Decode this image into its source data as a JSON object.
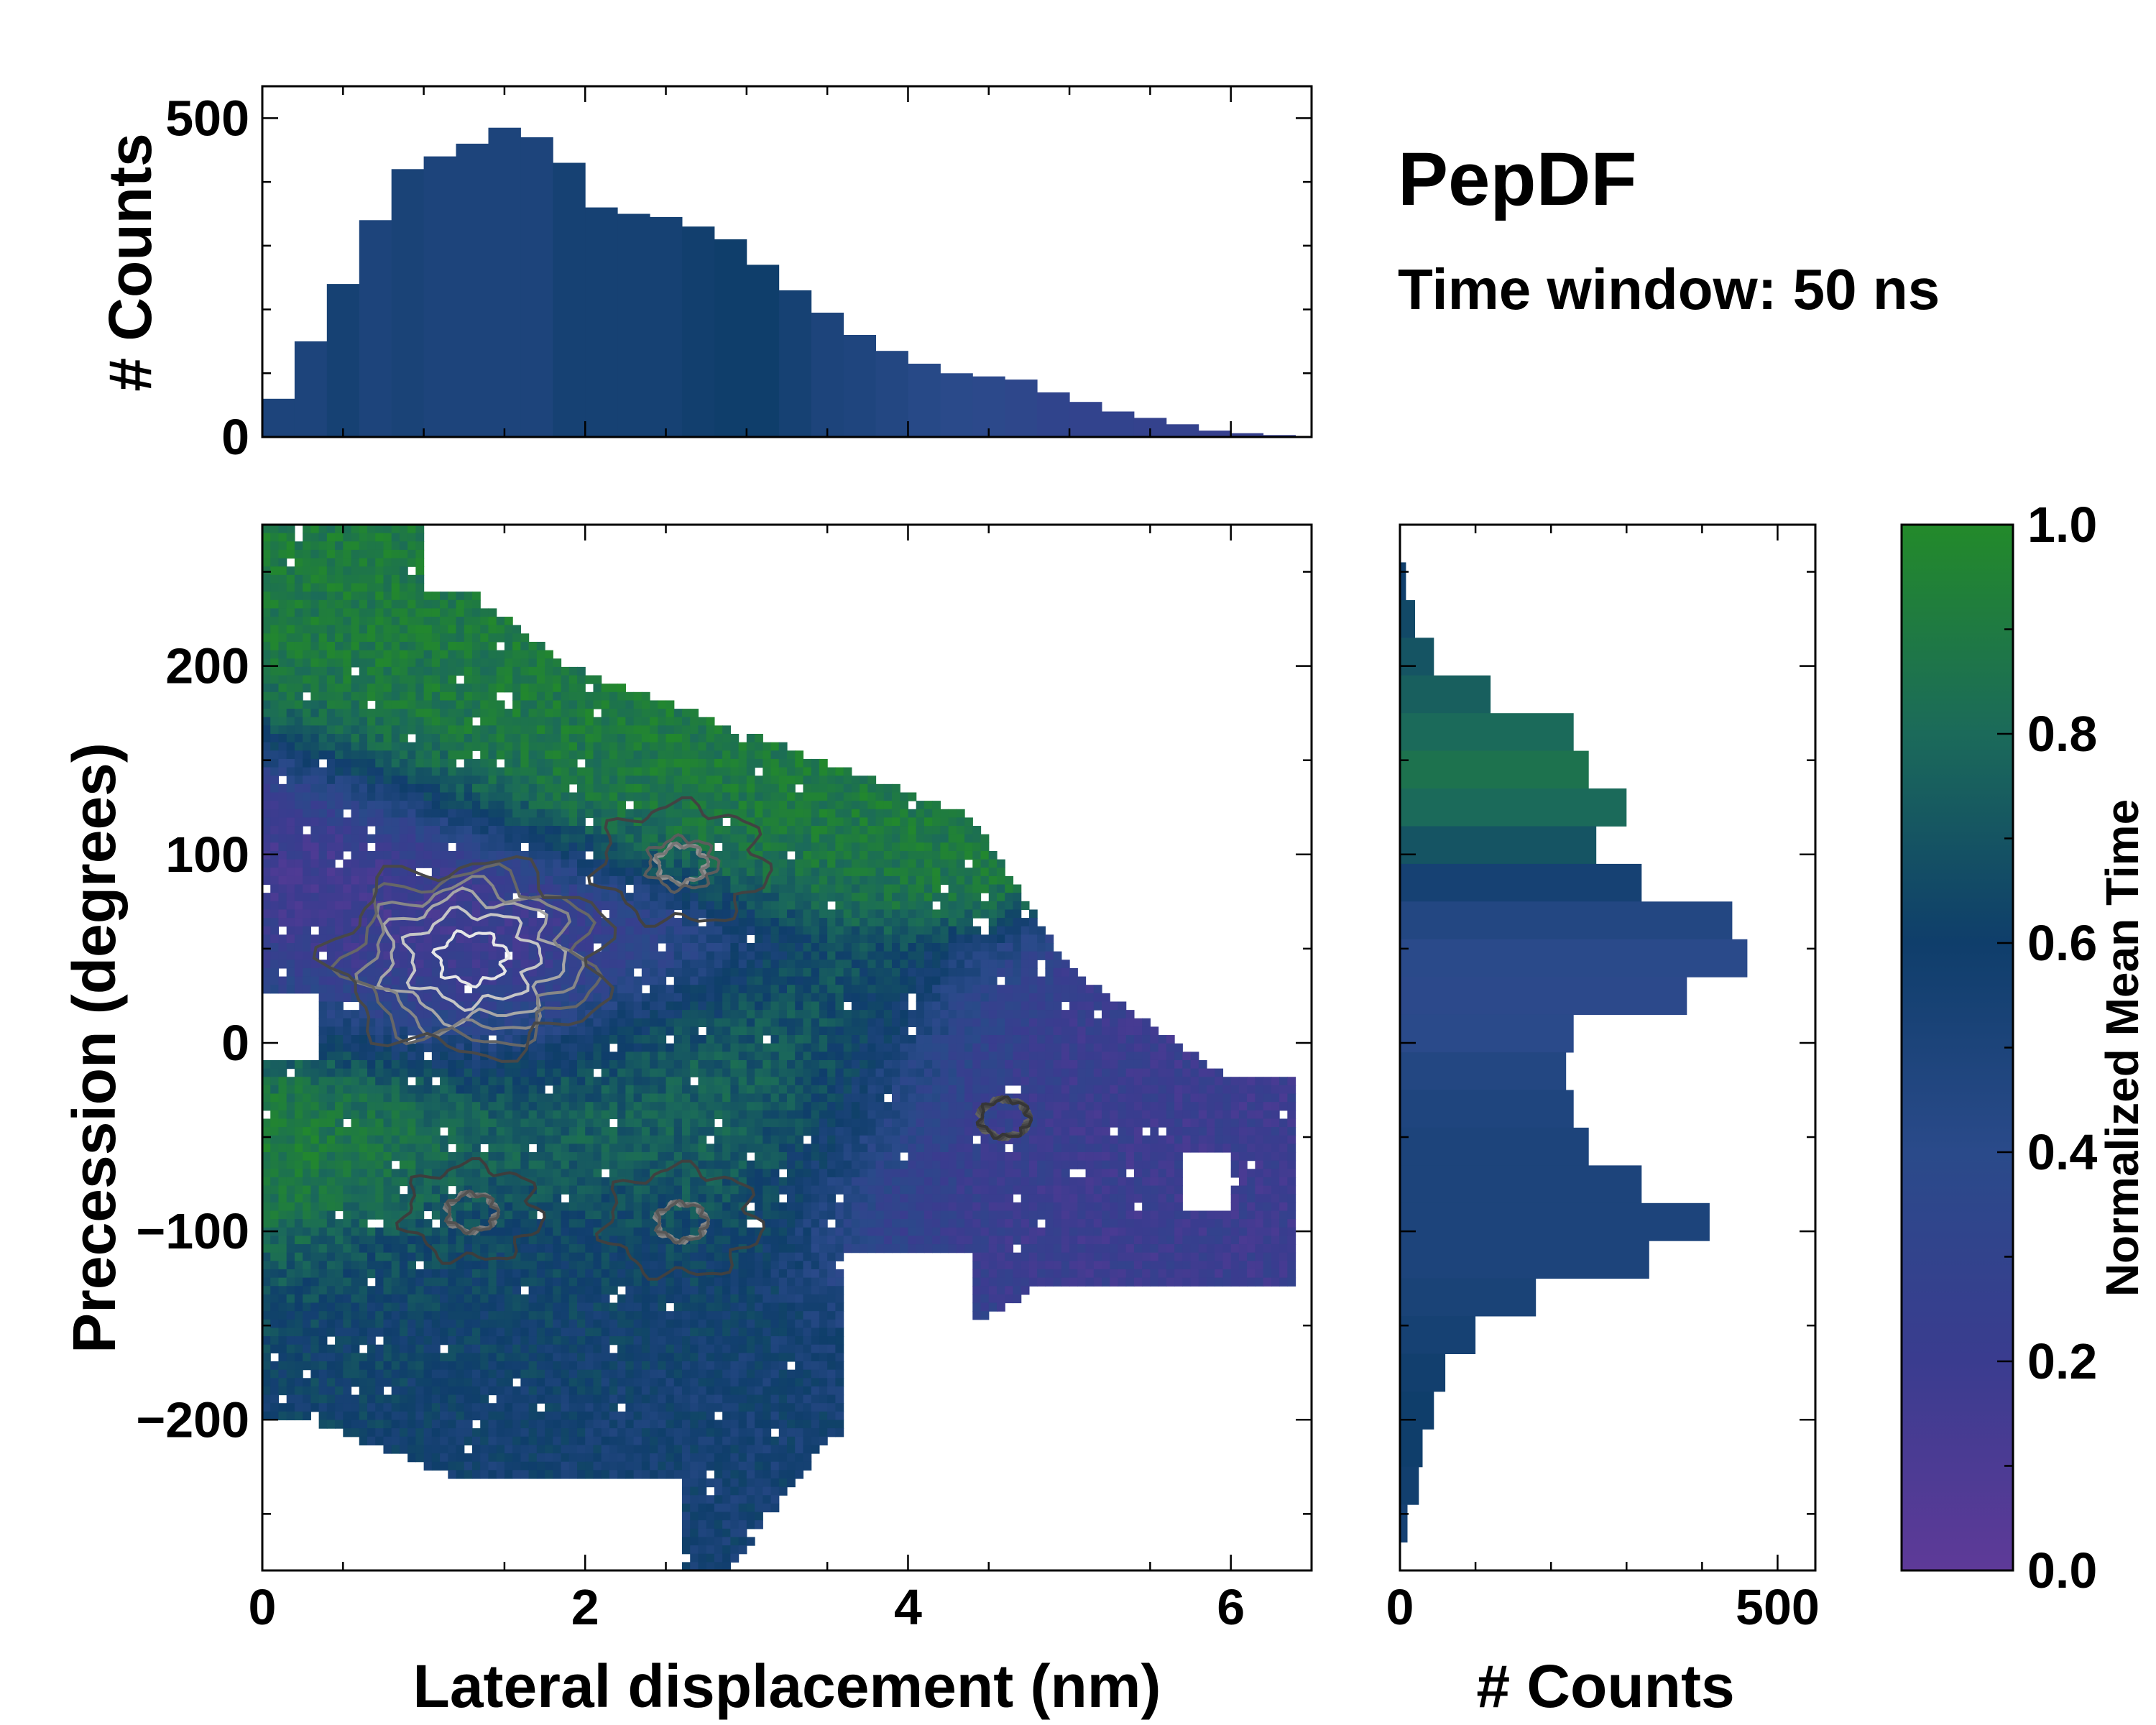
{
  "chart_data": [
    {
      "id": "main",
      "type": "heatmap",
      "xlabel": "Lateral displacement (nm)",
      "ylabel": "Precession (degrees)",
      "xlim": [
        0,
        6.5
      ],
      "ylim": [
        -280,
        275
      ],
      "xticks": [
        0,
        2,
        4,
        6
      ],
      "yticks": [
        -200,
        -100,
        0,
        100,
        200
      ],
      "xtick_labels": [
        "0",
        "2",
        "4",
        "6"
      ],
      "ytick_labels": [
        "−200",
        "−100",
        "0",
        "100",
        "200"
      ],
      "color_encoding": "Normalized Mean Time",
      "overlay": "density contours",
      "density_centers": [
        {
          "x": 1.3,
          "y": 45,
          "weight": 1.0
        },
        {
          "x": 2.6,
          "y": 95,
          "weight": 0.55
        },
        {
          "x": 2.6,
          "y": -95,
          "weight": 0.5
        },
        {
          "x": 1.3,
          "y": -90,
          "weight": 0.45
        },
        {
          "x": 4.6,
          "y": -40,
          "weight": 0.3
        }
      ],
      "time_regions": [
        {
          "x": 2.8,
          "y": 150,
          "value": 0.9
        },
        {
          "x": 1.2,
          "y": 40,
          "value": 0.15
        },
        {
          "x": 4.8,
          "y": -60,
          "value": 0.2
        },
        {
          "x": 1.5,
          "y": -120,
          "value": 0.6
        },
        {
          "x": 3.2,
          "y": -230,
          "value": 0.55
        },
        {
          "x": 0.2,
          "y": -45,
          "value": 0.95
        },
        {
          "x": 2.6,
          "y": -30,
          "value": 0.8
        }
      ]
    },
    {
      "id": "top",
      "type": "bar",
      "ylabel": "# Counts",
      "xlim": [
        0,
        6.5
      ],
      "ylim": [
        0,
        550
      ],
      "yticks": [
        0,
        500
      ],
      "ytick_labels": [
        "0",
        "500"
      ],
      "x": [
        0.1,
        0.3,
        0.5,
        0.7,
        0.9,
        1.1,
        1.3,
        1.5,
        1.7,
        1.9,
        2.1,
        2.3,
        2.5,
        2.7,
        2.9,
        3.1,
        3.3,
        3.5,
        3.7,
        3.9,
        4.1,
        4.3,
        4.5,
        4.7,
        4.9,
        5.1,
        5.3,
        5.5,
        5.7,
        5.9,
        6.1,
        6.3
      ],
      "values": [
        60,
        150,
        240,
        340,
        420,
        440,
        460,
        485,
        470,
        430,
        360,
        350,
        345,
        330,
        310,
        270,
        230,
        195,
        160,
        135,
        115,
        100,
        95,
        90,
        70,
        55,
        40,
        30,
        20,
        10,
        6,
        3
      ],
      "color_values": [
        0.5,
        0.5,
        0.55,
        0.5,
        0.52,
        0.5,
        0.5,
        0.5,
        0.5,
        0.55,
        0.55,
        0.55,
        0.55,
        0.58,
        0.6,
        0.6,
        0.55,
        0.5,
        0.48,
        0.45,
        0.42,
        0.4,
        0.38,
        0.35,
        0.32,
        0.3,
        0.3,
        0.28,
        0.28,
        0.25,
        0.25,
        0.25
      ]
    },
    {
      "id": "right",
      "type": "bar",
      "orientation": "horizontal",
      "xlabel": "# Counts",
      "xlim": [
        0,
        550
      ],
      "ylim": [
        -280,
        275
      ],
      "xticks": [
        0,
        500
      ],
      "xtick_labels": [
        "0",
        "500"
      ],
      "y": [
        245,
        225,
        205,
        185,
        165,
        145,
        125,
        105,
        85,
        65,
        45,
        25,
        5,
        -15,
        -35,
        -55,
        -75,
        -95,
        -115,
        -135,
        -155,
        -175,
        -195,
        -215,
        -235,
        -255
      ],
      "values": [
        8,
        20,
        45,
        120,
        230,
        250,
        300,
        260,
        320,
        440,
        460,
        380,
        230,
        220,
        230,
        250,
        320,
        410,
        330,
        180,
        100,
        60,
        45,
        30,
        25,
        10
      ],
      "color_values": [
        0.6,
        0.65,
        0.7,
        0.75,
        0.8,
        0.85,
        0.8,
        0.7,
        0.55,
        0.45,
        0.4,
        0.38,
        0.4,
        0.45,
        0.48,
        0.5,
        0.5,
        0.5,
        0.5,
        0.52,
        0.55,
        0.58,
        0.6,
        0.6,
        0.58,
        0.55
      ]
    },
    {
      "id": "colorbar",
      "type": "colorbar",
      "label": "Normalized Mean Time",
      "range": [
        0.0,
        1.0
      ],
      "ticks": [
        0.0,
        0.2,
        0.4,
        0.6,
        0.8,
        1.0
      ],
      "tick_labels": [
        "0.0",
        "0.2",
        "0.4",
        "0.6",
        "0.8",
        "1.0"
      ],
      "colors": [
        "#5e3a98",
        "#3a3c8f",
        "#2a4a8a",
        "#0f3e6b",
        "#1b6a5a",
        "#238a2a"
      ]
    }
  ],
  "annotations": {
    "title": "PepDF",
    "subtitle": "Time window: 50 ns"
  }
}
